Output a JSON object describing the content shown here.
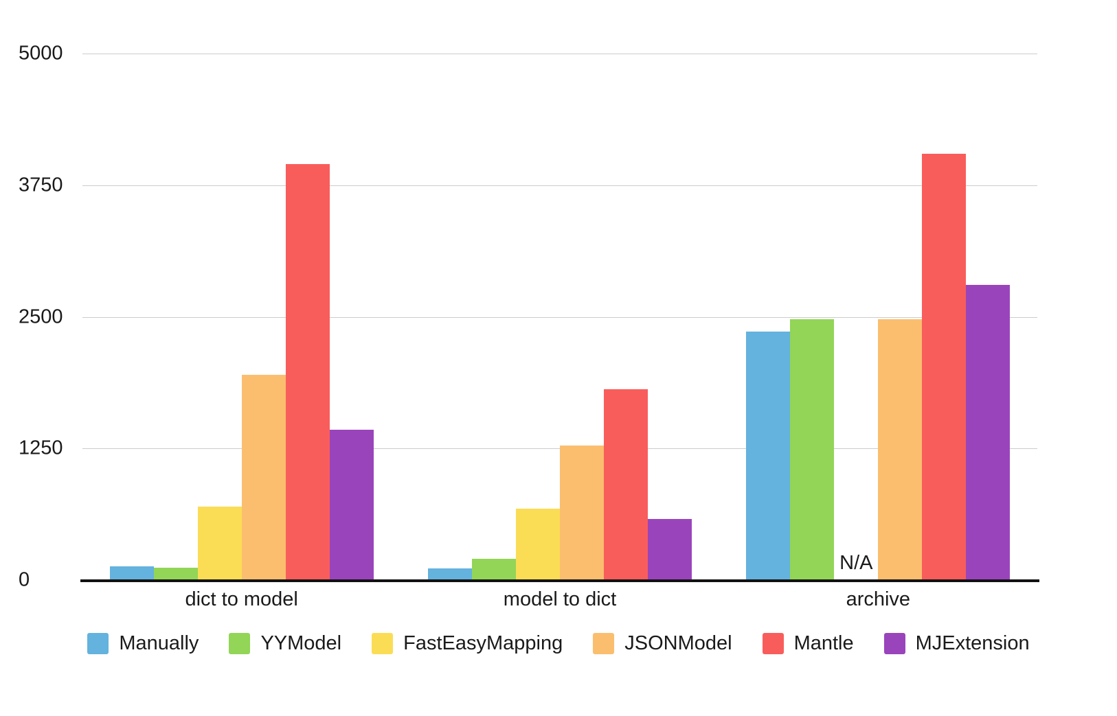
{
  "chart_data": {
    "type": "bar",
    "title": "",
    "xlabel": "",
    "ylabel": "",
    "categories": [
      "dict to model",
      "model to dict",
      "archive"
    ],
    "series": [
      {
        "name": "Manually",
        "color": "#64B2DE",
        "values": [
          130,
          110,
          2360
        ]
      },
      {
        "name": "YYModel",
        "color": "#92D557",
        "values": [
          120,
          200,
          2480
        ]
      },
      {
        "name": "FastEasyMapping",
        "color": "#FBDD55",
        "values": [
          700,
          680,
          null
        ]
      },
      {
        "name": "JSONModel",
        "color": "#FBBE6F",
        "values": [
          1950,
          1280,
          2480
        ]
      },
      {
        "name": "Mantle",
        "color": "#F95D5B",
        "values": [
          3950,
          1810,
          4050
        ]
      },
      {
        "name": "MJExtension",
        "color": "#9A44BC",
        "values": [
          1430,
          580,
          2800
        ]
      }
    ],
    "ylim": [
      0,
      5000
    ],
    "yticks": [
      0,
      1250,
      2500,
      3750,
      5000
    ],
    "na_label": "N/A",
    "grid": true,
    "legend_position": "bottom",
    "colors": {
      "gridline": "#cccccc",
      "axis": "#111111",
      "text": "#1a1a1a",
      "background": "#ffffff"
    }
  }
}
